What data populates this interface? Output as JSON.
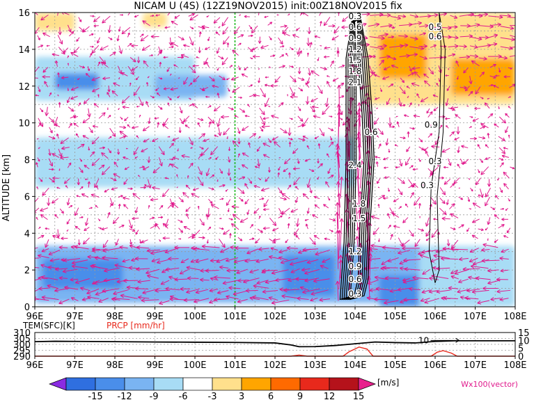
{
  "chart_data": [
    {
      "type": "heatmap",
      "title": "NICAM U (4S) (12Z19NOV2015) init:00Z18NOV2015 fix",
      "ylabel": "ALTITUDE [km]",
      "xlim": [
        96,
        108
      ],
      "ylim": [
        0,
        16
      ],
      "x_ticks": [
        "96E",
        "97E",
        "98E",
        "99E",
        "100E",
        "101E",
        "102E",
        "103E",
        "104E",
        "105E",
        "106E",
        "107E",
        "108E"
      ],
      "y_ticks": [
        "0",
        "2",
        "4",
        "6",
        "8",
        "10",
        "12",
        "14",
        "16"
      ],
      "grid": true,
      "marker_line_x": 101,
      "colors": {
        "marker_line": "#22b822",
        "vector": "#e0198c",
        "contour": "#000000"
      },
      "u_regions": [
        {
          "lon": [
            96,
            108
          ],
          "alt": [
            0.2,
            3.3
          ],
          "u": -7
        },
        {
          "lon": [
            96.2,
            98.2
          ],
          "alt": [
            1.0,
            2.6
          ],
          "u": -11
        },
        {
          "lon": [
            102.2,
            103.5
          ],
          "alt": [
            0.6,
            2.8
          ],
          "u": -10
        },
        {
          "lon": [
            104.6,
            106.5
          ],
          "alt": [
            0.0,
            1.7
          ],
          "u": -11
        },
        {
          "lon": [
            96,
            100
          ],
          "alt": [
            11.2,
            13.6
          ],
          "u": -5
        },
        {
          "lon": [
            96.5,
            97.6
          ],
          "alt": [
            11.8,
            12.7
          ],
          "u": -11
        },
        {
          "lon": [
            99,
            100.8
          ],
          "alt": [
            11.4,
            12.6
          ],
          "u": -8
        },
        {
          "lon": [
            96,
            104
          ],
          "alt": [
            6.5,
            9.2
          ],
          "u": -4
        },
        {
          "lon": [
            96,
            97
          ],
          "alt": [
            15,
            16
          ],
          "u": 5
        },
        {
          "lon": [
            98.7,
            99.3
          ],
          "alt": [
            15.2,
            16
          ],
          "u": 4
        },
        {
          "lon": [
            104.3,
            108
          ],
          "alt": [
            11,
            16
          ],
          "u": 5
        },
        {
          "lon": [
            104.6,
            105.8
          ],
          "alt": [
            12.4,
            14.8
          ],
          "u": 8
        },
        {
          "lon": [
            106.4,
            108
          ],
          "alt": [
            11.5,
            13.5
          ],
          "u": 7
        },
        {
          "lon": [
            105.6,
            108
          ],
          "alt": [
            0,
            3.3
          ],
          "u": -4
        }
      ],
      "contours": [
        {
          "value": 0.3,
          "lon": 104,
          "alt": 0.7
        },
        {
          "value": 0.6,
          "lon": 104,
          "alt": 1.5
        },
        {
          "value": 0.9,
          "lon": 104,
          "alt": 2.2
        },
        {
          "value": 1.2,
          "lon": 104,
          "alt": 3.0
        },
        {
          "value": 1.5,
          "lon": 104.1,
          "alt": 4.8
        },
        {
          "value": 1.8,
          "lon": 104.1,
          "alt": 5.6
        },
        {
          "value": 2.4,
          "lon": 104,
          "alt": 7.7
        },
        {
          "value": 2.1,
          "lon": 104,
          "alt": 12.2
        },
        {
          "value": 1.8,
          "lon": 104,
          "alt": 12.8
        },
        {
          "value": 1.5,
          "lon": 104,
          "alt": 13.4
        },
        {
          "value": 1.2,
          "lon": 104,
          "alt": 14.0
        },
        {
          "value": 0.9,
          "lon": 104,
          "alt": 14.6
        },
        {
          "value": 0.6,
          "lon": 104,
          "alt": 15.2
        },
        {
          "value": 0.3,
          "lon": 104,
          "alt": 15.8
        },
        {
          "value": 0.6,
          "lon": 104.4,
          "alt": 9.5
        },
        {
          "value": 0.3,
          "lon": 105.8,
          "alt": 6.6
        },
        {
          "value": 0.3,
          "lon": 106,
          "alt": 7.9
        },
        {
          "value": 0.9,
          "lon": 105.9,
          "alt": 9.9
        },
        {
          "value": 0.6,
          "lon": 106,
          "alt": 14.7
        },
        {
          "value": 0.5,
          "lon": 106,
          "alt": 15.2
        }
      ]
    },
    {
      "type": "line",
      "labels": [
        "TEM(SFC)[K]",
        "PRCP [mm/hr]"
      ],
      "label_colors": {
        "TEM(SFC)[K]": "#000000",
        "PRCP [mm/hr]": "#e8291c"
      },
      "left_axis_ticks": [
        "310",
        "305",
        "300",
        "295",
        "290"
      ],
      "left_ylim": [
        290,
        310
      ],
      "right_axis_ticks": [
        "15",
        "10",
        "5",
        "0"
      ],
      "right_ylim": [
        0,
        15
      ],
      "x_ticks": [
        "96E",
        "97E",
        "98E",
        "99E",
        "100E",
        "101E",
        "102E",
        "103E",
        "104E",
        "105E",
        "106E",
        "107E",
        "108E"
      ],
      "xlim": [
        96,
        108
      ],
      "annotation": {
        "text": "10",
        "lon": 105.8,
        "value": 10
      },
      "series": [
        {
          "name": "TEM(SFC)[K]",
          "axis": "left",
          "x": [
            96,
            96.5,
            97,
            98,
            99,
            100,
            101,
            102,
            102.4,
            102.6,
            103,
            103.5,
            104,
            104.5,
            105,
            105.5,
            106,
            106.5,
            107,
            108
          ],
          "y": [
            302.3,
            302.6,
            302.5,
            302.3,
            302.0,
            301.8,
            301.6,
            301.2,
            299.5,
            298.0,
            298.1,
            299.0,
            300.5,
            302.0,
            301.5,
            301.2,
            302.5,
            303.0,
            303.0,
            303.0
          ]
        },
        {
          "name": "PRCP [mm/hr]",
          "axis": "right",
          "x": [
            96,
            101,
            102.4,
            102.6,
            102.8,
            103.7,
            103.85,
            104.1,
            104.3,
            104.45,
            105.9,
            106.05,
            106.2,
            106.4,
            106.55,
            108
          ],
          "y": [
            0,
            0,
            0,
            0.7,
            0,
            0,
            2.8,
            5.8,
            4.5,
            0,
            0,
            2.5,
            3.5,
            2.0,
            0,
            0
          ]
        }
      ]
    },
    {
      "type": "colorbar",
      "ticks": [
        "-15",
        "-12",
        "-9",
        "-6",
        "-3",
        "3",
        "6",
        "9",
        "12",
        "15"
      ],
      "unit": "[m/s]",
      "vector_label": "Wx100(vector)",
      "colors": [
        "#8a2be2",
        "#2f6fe0",
        "#4a8eea",
        "#7ab4f2",
        "#a8dcf5",
        "#ffffff",
        "#ffe08c",
        "#ffa500",
        "#ff6a00",
        "#e8291c",
        "#b5121b",
        "#e8208c"
      ]
    }
  ]
}
